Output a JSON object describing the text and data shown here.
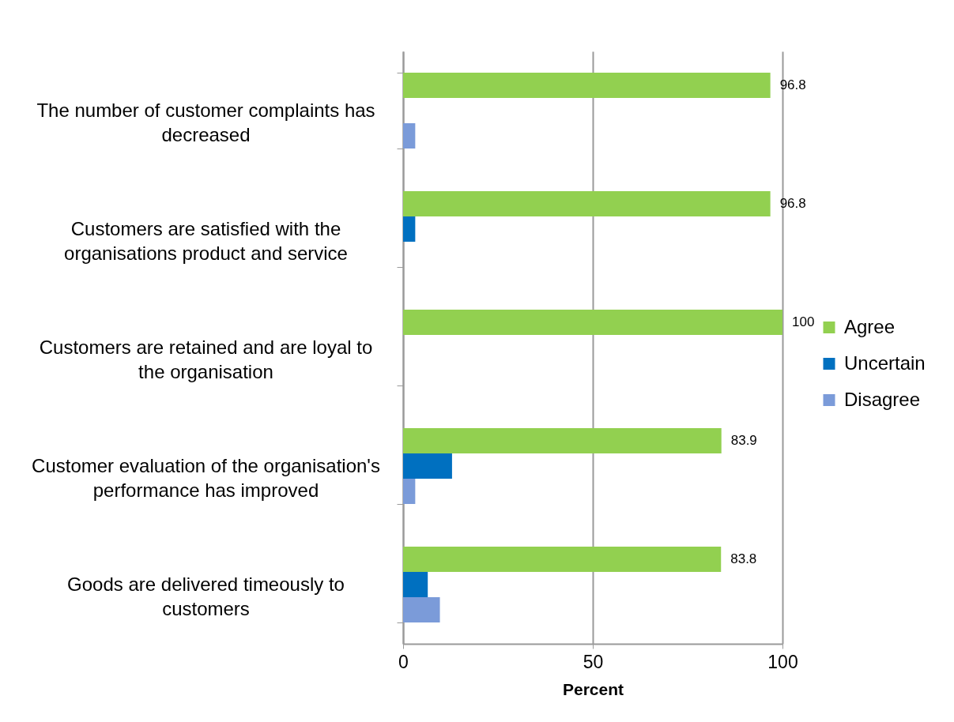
{
  "chart_data": {
    "type": "bar",
    "orientation": "horizontal",
    "xlabel": "Percent",
    "categories": [
      "The number of customer complaints has decreased",
      "Customers are satisfied with the organisations product and service",
      "Customers are retained and are loyal to the organisation",
      "Customer evaluation of the organisation's performance has improved",
      "Goods are delivered timeously to customers"
    ],
    "series": [
      {
        "name": "Agree",
        "color": "#92d050",
        "values": [
          96.8,
          96.8,
          100,
          83.9,
          83.8
        ],
        "value_labels": [
          "96.8",
          "96.8",
          "100",
          "83.9",
          "83.8"
        ]
      },
      {
        "name": "Uncertain",
        "color": "#0070c0",
        "values": [
          null,
          3.2,
          null,
          12.9,
          6.5
        ]
      },
      {
        "name": "Disagree",
        "color": "#7b9bd9",
        "values": [
          3.2,
          null,
          null,
          3.2,
          9.7
        ]
      }
    ],
    "xlim": [
      0,
      100
    ],
    "xticks": [
      0,
      50,
      100
    ],
    "grid": "x",
    "legend": "right"
  }
}
